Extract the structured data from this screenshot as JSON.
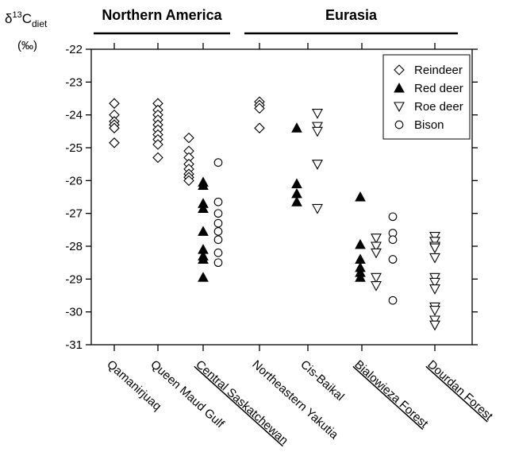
{
  "chart_data": {
    "type": "scatter",
    "y_label_main": "δ",
    "y_label_sup": "13",
    "y_label_base": "C",
    "y_label_sub": "diet",
    "y_unit": "(‰)",
    "ylim": [
      -31,
      -22
    ],
    "yticks": [
      -22,
      -23,
      -24,
      -25,
      -26,
      -27,
      -28,
      -29,
      -30,
      -31
    ],
    "y_tick_labels": [
      "-22",
      "-23",
      "-24",
      "-25",
      "-26",
      "-27",
      "-28",
      "-29",
      "-30",
      "-31"
    ],
    "regions": [
      {
        "name": "Northern America",
        "from": 0,
        "to": 2
      },
      {
        "name": "Eurasia",
        "from": 3,
        "to": 6
      }
    ],
    "categories": [
      {
        "name": "Qamanirjuaq",
        "underlined": false
      },
      {
        "name": "Queen Maud Gulf",
        "underlined": false
      },
      {
        "name": "Central Saskatchewan",
        "underlined": true
      },
      {
        "name": "Northeastern Yakutia",
        "underlined": false
      },
      {
        "name": "Cis-Baikal",
        "underlined": false
      },
      {
        "name": "Bialowieza Forest",
        "underlined": true
      },
      {
        "name": "Dourdan Forest",
        "underlined": true
      }
    ],
    "legend_position": "top-right",
    "series": [
      {
        "name": "Reindeer",
        "marker": "diamond-open",
        "points": [
          [
            0,
            -23.65
          ],
          [
            0,
            -24.0
          ],
          [
            0,
            -24.2
          ],
          [
            0,
            -24.3
          ],
          [
            0,
            -24.4
          ],
          [
            0,
            -24.85
          ],
          [
            1,
            -23.65
          ],
          [
            1,
            -23.85
          ],
          [
            1,
            -24.0
          ],
          [
            1,
            -24.15
          ],
          [
            1,
            -24.3
          ],
          [
            1,
            -24.45
          ],
          [
            1,
            -24.6
          ],
          [
            1,
            -24.75
          ],
          [
            1,
            -24.9
          ],
          [
            1,
            -25.3
          ],
          [
            2,
            -24.7
          ],
          [
            2,
            -25.1
          ],
          [
            2,
            -25.3
          ],
          [
            2,
            -25.5
          ],
          [
            2,
            -25.65
          ],
          [
            2,
            -25.8
          ],
          [
            2,
            -25.9
          ],
          [
            2,
            -26.0
          ],
          [
            3,
            -23.6
          ],
          [
            3,
            -23.7
          ],
          [
            3,
            -23.8
          ],
          [
            3,
            -24.4
          ]
        ]
      },
      {
        "name": "Red deer",
        "marker": "triangle-up-filled",
        "points": [
          [
            2,
            -26.05
          ],
          [
            2,
            -26.15
          ],
          [
            2,
            -26.7
          ],
          [
            2,
            -26.85
          ],
          [
            2,
            -27.55
          ],
          [
            2,
            -28.1
          ],
          [
            2,
            -28.3
          ],
          [
            2,
            -28.4
          ],
          [
            2,
            -28.95
          ],
          [
            4,
            -24.4
          ],
          [
            4,
            -26.1
          ],
          [
            4,
            -26.4
          ],
          [
            4,
            -26.65
          ],
          [
            5,
            -26.5
          ],
          [
            5,
            -27.95
          ],
          [
            5,
            -28.4
          ],
          [
            5,
            -28.65
          ],
          [
            5,
            -28.8
          ],
          [
            5,
            -28.95
          ]
        ]
      },
      {
        "name": "Roe deer",
        "marker": "triangle-down-open",
        "points": [
          [
            4,
            -23.95
          ],
          [
            4,
            -24.35
          ],
          [
            4,
            -24.5
          ],
          [
            4,
            -25.5
          ],
          [
            4,
            -26.85
          ],
          [
            5,
            -27.75
          ],
          [
            5,
            -28.0
          ],
          [
            5,
            -28.2
          ],
          [
            5,
            -28.95
          ],
          [
            5,
            -29.2
          ],
          [
            6,
            -27.7
          ],
          [
            6,
            -27.85
          ],
          [
            6,
            -28.0
          ],
          [
            6,
            -28.05
          ],
          [
            6,
            -28.35
          ],
          [
            6,
            -28.95
          ],
          [
            6,
            -29.1
          ],
          [
            6,
            -29.3
          ],
          [
            6,
            -29.85
          ],
          [
            6,
            -29.95
          ],
          [
            6,
            -30.25
          ],
          [
            6,
            -30.4
          ]
        ]
      },
      {
        "name": "Bison",
        "marker": "circle-open",
        "points": [
          [
            2,
            -25.45
          ],
          [
            2,
            -26.65
          ],
          [
            2,
            -27.0
          ],
          [
            2,
            -27.3
          ],
          [
            2,
            -27.55
          ],
          [
            2,
            -27.8
          ],
          [
            2,
            -28.2
          ],
          [
            2,
            -28.5
          ],
          [
            5,
            -27.1
          ],
          [
            5,
            -27.6
          ],
          [
            5,
            -27.8
          ],
          [
            5,
            -28.4
          ],
          [
            5,
            -29.65
          ]
        ]
      }
    ]
  }
}
